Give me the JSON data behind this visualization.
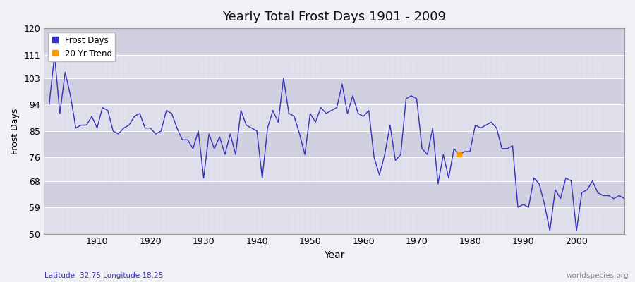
{
  "title": "Yearly Total Frost Days 1901 - 2009",
  "xlabel": "Year",
  "ylabel": "Frost Days",
  "subtitle": "Latitude -32.75 Longitude 18.25",
  "watermark": "worldspecies.org",
  "line_color": "#3333bb",
  "trend_color": "#ff9900",
  "bg_color": "#f0f0f5",
  "plot_bg_color": "#e8e8f0",
  "band_color_light": "#e0e0ec",
  "band_color_dark": "#d0d0e0",
  "grid_color": "#ffffff",
  "ylim": [
    50,
    120
  ],
  "yticks": [
    50,
    59,
    68,
    76,
    85,
    94,
    103,
    111,
    120
  ],
  "xlim": [
    1900,
    2009
  ],
  "years": [
    1901,
    1902,
    1903,
    1904,
    1905,
    1906,
    1907,
    1908,
    1909,
    1910,
    1911,
    1912,
    1913,
    1914,
    1915,
    1916,
    1917,
    1918,
    1919,
    1920,
    1921,
    1922,
    1923,
    1924,
    1925,
    1926,
    1927,
    1928,
    1929,
    1930,
    1931,
    1932,
    1933,
    1934,
    1935,
    1936,
    1937,
    1938,
    1939,
    1940,
    1941,
    1942,
    1943,
    1944,
    1945,
    1946,
    1947,
    1948,
    1949,
    1950,
    1951,
    1952,
    1953,
    1954,
    1955,
    1956,
    1957,
    1958,
    1959,
    1960,
    1961,
    1962,
    1963,
    1964,
    1965,
    1966,
    1967,
    1968,
    1969,
    1970,
    1971,
    1972,
    1973,
    1974,
    1975,
    1976,
    1977,
    1978,
    1979,
    1980,
    1981,
    1982,
    1983,
    1984,
    1985,
    1986,
    1987,
    1988,
    1989,
    1990,
    1991,
    1992,
    1993,
    1994,
    1995,
    1996,
    1997,
    1998,
    1999,
    2000,
    2001,
    2002,
    2003,
    2004,
    2005,
    2006,
    2007,
    2008,
    2009
  ],
  "values": [
    94,
    111,
    91,
    105,
    97,
    86,
    87,
    87,
    90,
    86,
    93,
    92,
    85,
    84,
    86,
    87,
    90,
    91,
    86,
    86,
    84,
    85,
    92,
    91,
    86,
    82,
    82,
    79,
    85,
    69,
    84,
    79,
    83,
    77,
    84,
    77,
    92,
    87,
    86,
    85,
    69,
    86,
    92,
    88,
    103,
    91,
    90,
    84,
    77,
    91,
    88,
    93,
    91,
    92,
    93,
    101,
    91,
    97,
    91,
    90,
    92,
    76,
    70,
    77,
    87,
    75,
    77,
    96,
    97,
    96,
    79,
    77,
    86,
    67,
    77,
    69,
    79,
    77,
    78,
    78,
    87,
    86,
    87,
    88,
    86,
    79,
    79,
    80,
    59,
    60,
    59,
    69,
    67,
    60,
    51,
    65,
    62,
    69,
    68,
    51,
    64,
    65,
    68,
    64,
    63,
    63,
    62,
    63,
    62
  ],
  "trend_year": [
    1978
  ],
  "trend_value": [
    77
  ]
}
